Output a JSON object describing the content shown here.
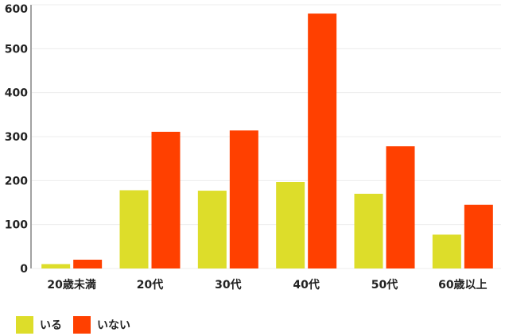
{
  "chart_data": {
    "type": "bar",
    "title": "",
    "xlabel": "",
    "ylabel": "",
    "categories": [
      "20歳未満",
      "20代",
      "30代",
      "40代",
      "50代",
      "60歳以上"
    ],
    "ylim": [
      0,
      600
    ],
    "yticks": [
      0,
      100,
      200,
      300,
      400,
      500,
      600
    ],
    "grid": true,
    "legend_position": "bottom-left",
    "series": [
      {
        "name": "いる",
        "color": "#dddd2a",
        "values": [
          10,
          178,
          177,
          197,
          170,
          77
        ]
      },
      {
        "name": "いない",
        "color": "#ff4000",
        "values": [
          20,
          311,
          314,
          580,
          278,
          145
        ]
      }
    ]
  }
}
